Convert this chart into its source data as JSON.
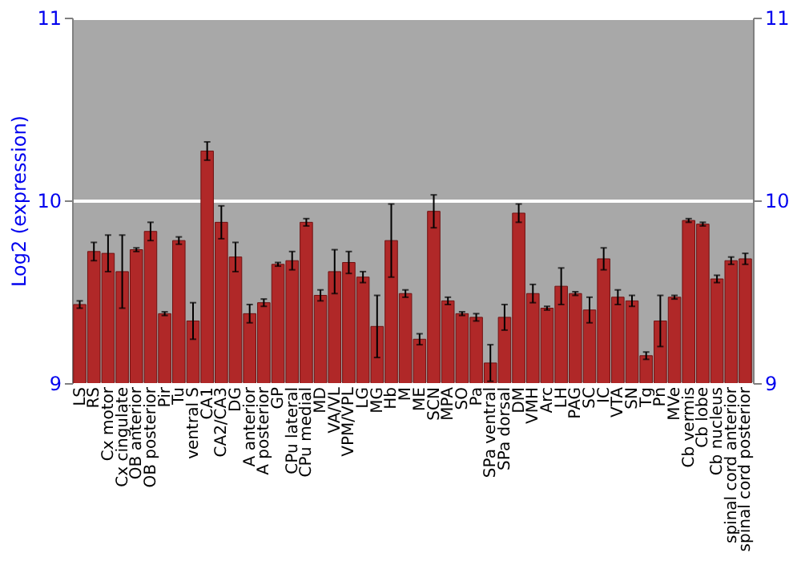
{
  "chart_data": {
    "type": "bar",
    "ylabel": "Log2 (expression)",
    "categories": [
      "LS",
      "RS",
      "Cx motor",
      "Cx cingulate",
      "OB anterior",
      "OB posterior",
      "Pir",
      "Tu",
      "ventral S",
      "CA1",
      "CA2/CA3",
      "DG",
      "A anterior",
      "A posterior",
      "GP",
      "CPu lateral",
      "CPu medial",
      "MD",
      "VA/VL",
      "VPM/VPL",
      "LG",
      "MG",
      "Hb",
      "M",
      "ME",
      "SCN",
      "MPA",
      "SO",
      "Pa",
      "SPa ventral",
      "SPa dorsal",
      "DM",
      "VMH",
      "Arc",
      "LH",
      "PAG",
      "SC",
      "IC",
      "VTA",
      "SN",
      "Tg",
      "Pn",
      "MVe",
      "Cb vermis",
      "Cb lobe",
      "Cb nucleus",
      "spinal cord anterior",
      "spinal cord posterior"
    ],
    "values": [
      9.43,
      9.72,
      9.71,
      9.61,
      9.73,
      9.83,
      9.38,
      9.78,
      9.34,
      10.27,
      9.88,
      9.69,
      9.38,
      9.44,
      9.65,
      9.67,
      9.88,
      9.48,
      9.61,
      9.66,
      9.58,
      9.31,
      9.78,
      9.49,
      9.24,
      9.94,
      9.45,
      9.38,
      9.36,
      9.11,
      9.36,
      9.93,
      9.49,
      9.41,
      9.53,
      9.49,
      9.4,
      9.68,
      9.47,
      9.45,
      9.15,
      9.34,
      9.47,
      9.89,
      9.87,
      9.57,
      9.67,
      9.68
    ],
    "errors": [
      0.02,
      0.05,
      0.1,
      0.2,
      0.01,
      0.05,
      0.01,
      0.02,
      0.1,
      0.05,
      0.09,
      0.08,
      0.05,
      0.02,
      0.01,
      0.05,
      0.02,
      0.03,
      0.12,
      0.06,
      0.03,
      0.17,
      0.2,
      0.02,
      0.03,
      0.09,
      0.02,
      0.01,
      0.02,
      0.1,
      0.07,
      0.05,
      0.05,
      0.01,
      0.1,
      0.01,
      0.07,
      0.06,
      0.04,
      0.03,
      0.02,
      0.14,
      0.01,
      0.01,
      0.01,
      0.02,
      0.02,
      0.03
    ],
    "color": "#b02828",
    "ylim": [
      9,
      11
    ],
    "yticks": [
      9,
      10,
      11
    ],
    "y2lim": [
      9,
      11
    ],
    "y2ticks": [
      9,
      10,
      11
    ],
    "grid": "y"
  }
}
